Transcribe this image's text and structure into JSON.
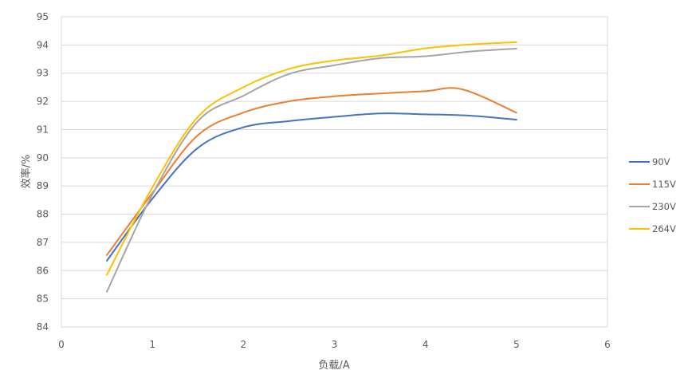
{
  "chart_data": {
    "type": "line",
    "title": "",
    "xlabel": "负载/A",
    "ylabel": "效率/%",
    "xlim": [
      0,
      6
    ],
    "ylim": [
      84,
      95
    ],
    "x_ticks": [
      "0",
      "1",
      "2",
      "3",
      "4",
      "5",
      "6"
    ],
    "y_ticks": [
      "84",
      "85",
      "86",
      "87",
      "88",
      "89",
      "90",
      "91",
      "92",
      "93",
      "94",
      "95"
    ],
    "grid": "horizontal",
    "legend_position": "right",
    "series": [
      {
        "name": "90V",
        "color": "#4472c4",
        "points": [
          [
            0.5,
            86.35
          ],
          [
            1.0,
            88.55
          ],
          [
            1.5,
            90.35
          ],
          [
            2.0,
            91.08
          ],
          [
            2.5,
            91.3
          ],
          [
            3.0,
            91.45
          ],
          [
            3.5,
            91.57
          ],
          [
            4.0,
            91.54
          ],
          [
            4.5,
            91.49
          ],
          [
            5.0,
            91.35
          ]
        ]
      },
      {
        "name": "115V",
        "color": "#ed7d31",
        "points": [
          [
            0.5,
            86.55
          ],
          [
            1.0,
            88.75
          ],
          [
            1.5,
            90.8
          ],
          [
            2.0,
            91.6
          ],
          [
            2.5,
            92.0
          ],
          [
            3.0,
            92.18
          ],
          [
            3.5,
            92.28
          ],
          [
            4.0,
            92.36
          ],
          [
            4.4,
            92.43
          ],
          [
            5.0,
            91.6
          ]
        ]
      },
      {
        "name": "230V",
        "color": "#a5a5a5",
        "points": [
          [
            0.5,
            85.25
          ],
          [
            1.0,
            88.7
          ],
          [
            1.5,
            91.3
          ],
          [
            2.0,
            92.2
          ],
          [
            2.5,
            92.97
          ],
          [
            3.0,
            93.28
          ],
          [
            3.5,
            93.53
          ],
          [
            4.0,
            93.6
          ],
          [
            4.5,
            93.77
          ],
          [
            5.0,
            93.87
          ]
        ]
      },
      {
        "name": "264V",
        "color": "#ffc000",
        "points": [
          [
            0.5,
            85.85
          ],
          [
            1.0,
            88.95
          ],
          [
            1.5,
            91.45
          ],
          [
            2.0,
            92.5
          ],
          [
            2.5,
            93.15
          ],
          [
            3.0,
            93.45
          ],
          [
            3.5,
            93.62
          ],
          [
            4.0,
            93.88
          ],
          [
            4.5,
            94.02
          ],
          [
            5.0,
            94.1
          ]
        ]
      }
    ]
  }
}
